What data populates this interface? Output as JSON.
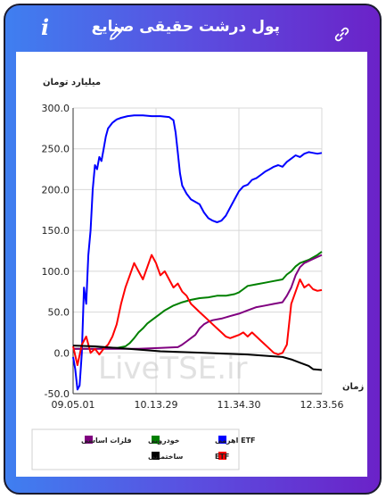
{
  "header": {
    "title": "پول درشت حقیقی صنایع",
    "info_icon_glyph": "i",
    "edit_icon": "pencil-icon",
    "link_icon": "link-icon"
  },
  "watermark": "LiveTSE.ir",
  "colors": {
    "frame_gradient_start": "#3f7ff0",
    "frame_gradient_end": "#6b22c8",
    "grid": "#d8d8d8"
  },
  "chart_data": {
    "type": "line",
    "ylabel": "میلیارد تومان",
    "xlabel": "زمان",
    "ylim": [
      -50,
      300
    ],
    "yticks": [
      "300.0",
      "250.0",
      "200.0",
      "150.0",
      "100.0",
      "50.0",
      "0.0",
      "-50.0"
    ],
    "ytick_values": [
      300,
      250,
      200,
      150,
      100,
      50,
      0,
      -50
    ],
    "xticks": [
      "09.05.01",
      "10.13.29",
      "11.34.30",
      "12.33.56"
    ],
    "grid": true,
    "legend_placement": "bottom",
    "series": [
      {
        "name": "ETF اهرمی",
        "color": "#0000ff",
        "values": [
          [
            0,
            -5
          ],
          [
            1,
            -20
          ],
          [
            2,
            -45
          ],
          [
            3,
            -40
          ],
          [
            4,
            0
          ],
          [
            5,
            80
          ],
          [
            6,
            60
          ],
          [
            7,
            120
          ],
          [
            8,
            150
          ],
          [
            9,
            200
          ],
          [
            10,
            230
          ],
          [
            11,
            225
          ],
          [
            12,
            240
          ],
          [
            13,
            235
          ],
          [
            14,
            250
          ],
          [
            15,
            265
          ],
          [
            16,
            275
          ],
          [
            18,
            282
          ],
          [
            20,
            286
          ],
          [
            22,
            288
          ],
          [
            25,
            290
          ],
          [
            28,
            291
          ],
          [
            32,
            291
          ],
          [
            36,
            290
          ],
          [
            40,
            290
          ],
          [
            44,
            289
          ],
          [
            46,
            285
          ],
          [
            47,
            270
          ],
          [
            48,
            245
          ],
          [
            49,
            220
          ],
          [
            50,
            205
          ],
          [
            52,
            195
          ],
          [
            54,
            188
          ],
          [
            56,
            185
          ],
          [
            58,
            182
          ],
          [
            60,
            172
          ],
          [
            62,
            165
          ],
          [
            64,
            162
          ],
          [
            66,
            160
          ],
          [
            68,
            162
          ],
          [
            70,
            168
          ],
          [
            72,
            178
          ],
          [
            74,
            188
          ],
          [
            76,
            198
          ],
          [
            78,
            204
          ],
          [
            80,
            206
          ],
          [
            82,
            212
          ],
          [
            84,
            214
          ],
          [
            86,
            218
          ],
          [
            88,
            222
          ],
          [
            90,
            225
          ],
          [
            92,
            228
          ],
          [
            94,
            230
          ],
          [
            96,
            228
          ],
          [
            98,
            234
          ],
          [
            100,
            238
          ],
          [
            102,
            242
          ],
          [
            104,
            240
          ],
          [
            106,
            244
          ],
          [
            108,
            246
          ],
          [
            110,
            245
          ],
          [
            112,
            244
          ],
          [
            114,
            245
          ]
        ]
      },
      {
        "name": "خودرویی",
        "color": "#008000",
        "values": [
          [
            0,
            5
          ],
          [
            10,
            5
          ],
          [
            20,
            6
          ],
          [
            24,
            8
          ],
          [
            26,
            12
          ],
          [
            28,
            18
          ],
          [
            30,
            25
          ],
          [
            32,
            30
          ],
          [
            34,
            36
          ],
          [
            36,
            40
          ],
          [
            38,
            44
          ],
          [
            40,
            48
          ],
          [
            42,
            52
          ],
          [
            44,
            55
          ],
          [
            46,
            58
          ],
          [
            48,
            60
          ],
          [
            50,
            62
          ],
          [
            54,
            65
          ],
          [
            58,
            67
          ],
          [
            62,
            68
          ],
          [
            66,
            70
          ],
          [
            70,
            70
          ],
          [
            74,
            72
          ],
          [
            76,
            74
          ],
          [
            78,
            78
          ],
          [
            80,
            82
          ],
          [
            84,
            84
          ],
          [
            88,
            86
          ],
          [
            92,
            88
          ],
          [
            96,
            90
          ],
          [
            98,
            96
          ],
          [
            100,
            100
          ],
          [
            102,
            106
          ],
          [
            104,
            110
          ],
          [
            108,
            114
          ],
          [
            112,
            120
          ],
          [
            114,
            124
          ]
        ]
      },
      {
        "name": "فلزات اساسی",
        "color": "#800080",
        "values": [
          [
            0,
            5
          ],
          [
            20,
            5
          ],
          [
            30,
            5
          ],
          [
            40,
            6
          ],
          [
            48,
            7
          ],
          [
            50,
            10
          ],
          [
            52,
            14
          ],
          [
            54,
            18
          ],
          [
            56,
            22
          ],
          [
            58,
            30
          ],
          [
            60,
            35
          ],
          [
            62,
            38
          ],
          [
            64,
            40
          ],
          [
            68,
            42
          ],
          [
            72,
            45
          ],
          [
            76,
            48
          ],
          [
            78,
            50
          ],
          [
            80,
            52
          ],
          [
            84,
            56
          ],
          [
            88,
            58
          ],
          [
            92,
            60
          ],
          [
            96,
            62
          ],
          [
            98,
            70
          ],
          [
            100,
            80
          ],
          [
            102,
            95
          ],
          [
            104,
            105
          ],
          [
            106,
            110
          ],
          [
            110,
            115
          ],
          [
            114,
            120
          ]
        ]
      },
      {
        "name": "ETF",
        "color": "#ff0000",
        "values": [
          [
            0,
            8
          ],
          [
            2,
            -15
          ],
          [
            4,
            10
          ],
          [
            6,
            20
          ],
          [
            8,
            0
          ],
          [
            10,
            5
          ],
          [
            12,
            -2
          ],
          [
            14,
            5
          ],
          [
            16,
            10
          ],
          [
            18,
            20
          ],
          [
            20,
            35
          ],
          [
            22,
            60
          ],
          [
            24,
            80
          ],
          [
            26,
            95
          ],
          [
            28,
            110
          ],
          [
            30,
            100
          ],
          [
            32,
            90
          ],
          [
            34,
            105
          ],
          [
            36,
            120
          ],
          [
            38,
            110
          ],
          [
            40,
            95
          ],
          [
            42,
            100
          ],
          [
            44,
            90
          ],
          [
            46,
            80
          ],
          [
            48,
            85
          ],
          [
            50,
            75
          ],
          [
            52,
            70
          ],
          [
            54,
            60
          ],
          [
            56,
            55
          ],
          [
            58,
            50
          ],
          [
            60,
            45
          ],
          [
            62,
            40
          ],
          [
            64,
            35
          ],
          [
            66,
            30
          ],
          [
            68,
            25
          ],
          [
            70,
            20
          ],
          [
            72,
            18
          ],
          [
            74,
            20
          ],
          [
            76,
            22
          ],
          [
            78,
            25
          ],
          [
            80,
            20
          ],
          [
            82,
            25
          ],
          [
            84,
            20
          ],
          [
            86,
            15
          ],
          [
            88,
            10
          ],
          [
            90,
            5
          ],
          [
            92,
            0
          ],
          [
            94,
            -2
          ],
          [
            96,
            0
          ],
          [
            98,
            10
          ],
          [
            100,
            60
          ],
          [
            102,
            75
          ],
          [
            104,
            90
          ],
          [
            106,
            80
          ],
          [
            108,
            84
          ],
          [
            110,
            78
          ],
          [
            112,
            76
          ],
          [
            114,
            77
          ]
        ]
      },
      {
        "name": "ساختمانی",
        "color": "#000000",
        "values": [
          [
            0,
            9
          ],
          [
            10,
            8
          ],
          [
            20,
            6
          ],
          [
            30,
            4
          ],
          [
            40,
            2
          ],
          [
            50,
            1
          ],
          [
            60,
            0
          ],
          [
            70,
            -1
          ],
          [
            80,
            -2
          ],
          [
            90,
            -4
          ],
          [
            96,
            -5
          ],
          [
            100,
            -8
          ],
          [
            104,
            -12
          ],
          [
            108,
            -16
          ],
          [
            110,
            -20
          ],
          [
            114,
            -21
          ]
        ]
      }
    ]
  }
}
